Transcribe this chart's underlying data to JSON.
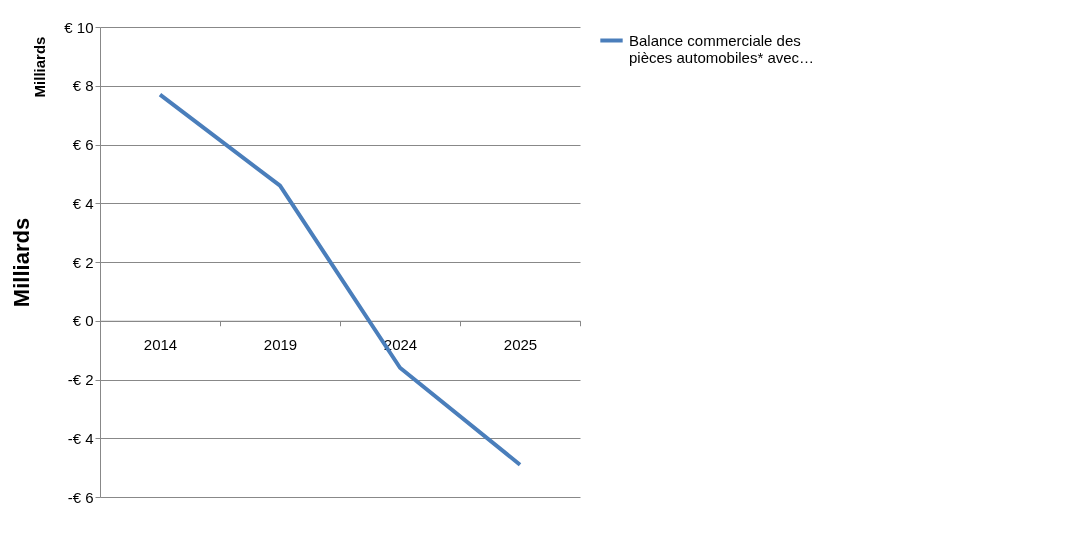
{
  "chart_data": {
    "type": "line",
    "ylabel": "Milliards",
    "annotations": [
      "Milliards"
    ],
    "categories": [
      "2014",
      "2019",
      "2024",
      "2025"
    ],
    "series": [
      {
        "name": "Balance commerciale des pièces automobiles* avec…",
        "color": "#4a7ebb",
        "values": [
          7.7,
          4.6,
          -1.6,
          -4.9
        ]
      }
    ],
    "ylim": [
      -6,
      10
    ],
    "yticks": [
      {
        "value": -6,
        "label": "-€ 6"
      },
      {
        "value": -4,
        "label": "-€ 4"
      },
      {
        "value": -2,
        "label": "-€ 2"
      },
      {
        "value": 0,
        "label": "€ 0"
      },
      {
        "value": 2,
        "label": "€ 2"
      },
      {
        "value": 4,
        "label": "€ 4"
      },
      {
        "value": 6,
        "label": "€ 6"
      },
      {
        "value": 8,
        "label": "€ 8"
      },
      {
        "value": 10,
        "label": "€ 10"
      }
    ],
    "grid": "y",
    "legend": "right",
    "marker": "none",
    "line_style": "solid"
  }
}
